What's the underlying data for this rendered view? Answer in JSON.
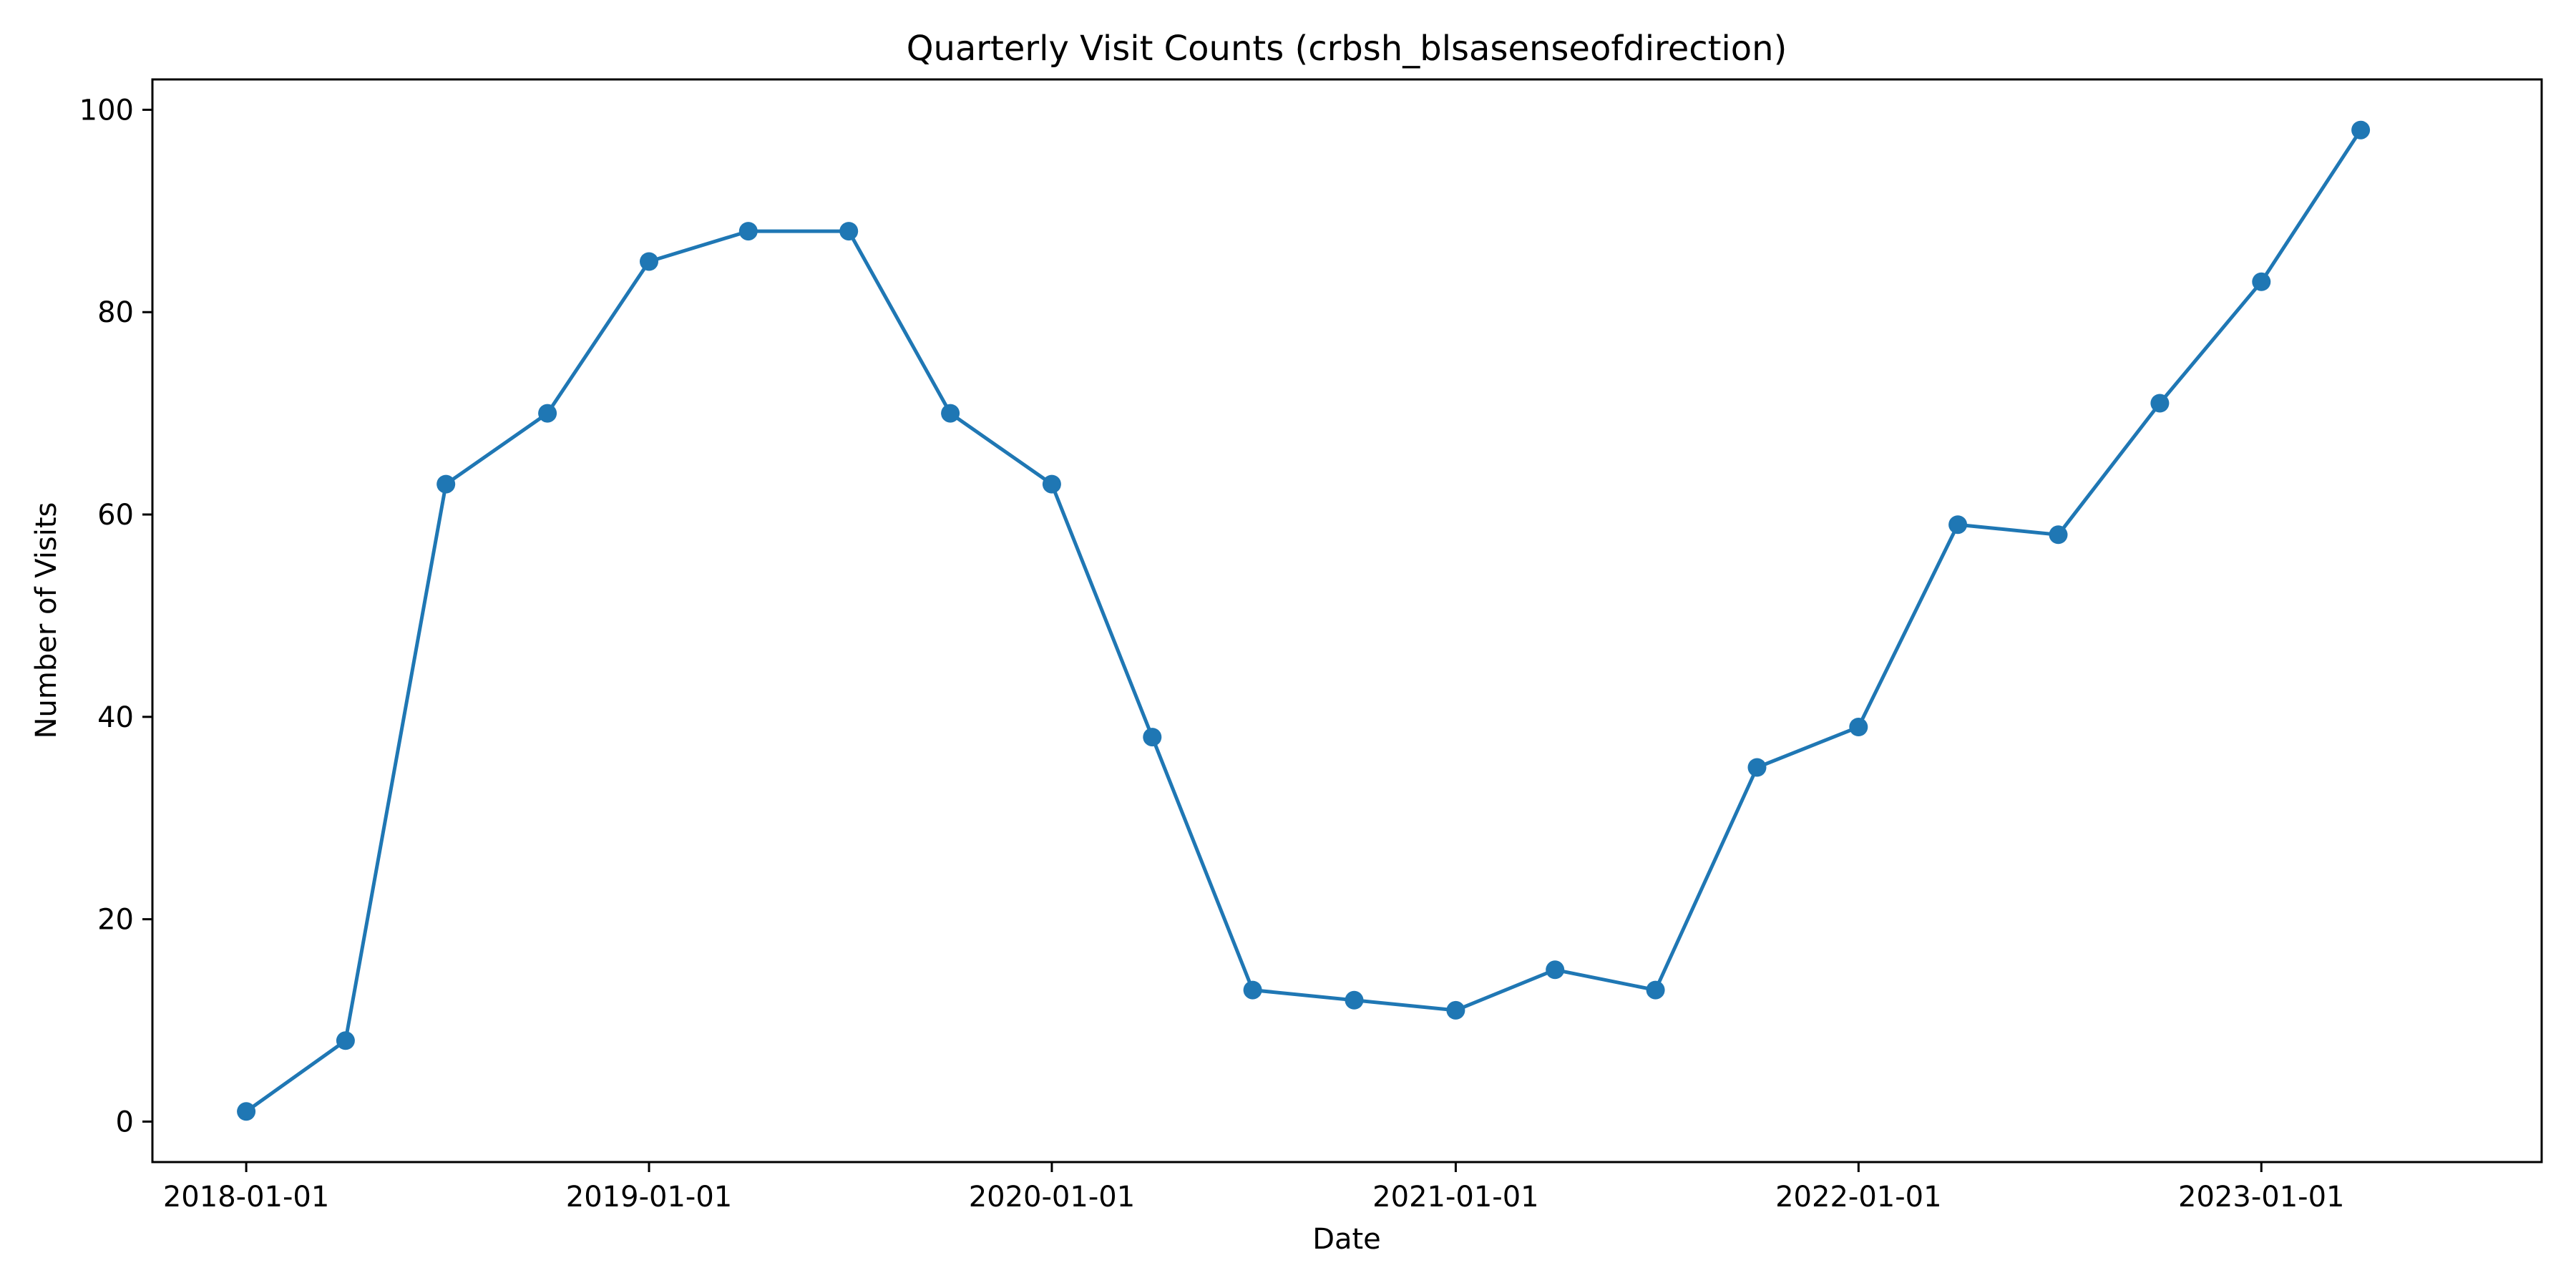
{
  "chart_data": {
    "type": "line",
    "title": "Quarterly Visit Counts (crbsh_blsasenseofdirection)",
    "xlabel": "Date",
    "ylabel": "Number of Visits",
    "x": [
      "2018-01-01",
      "2018-04-01",
      "2018-07-01",
      "2018-10-01",
      "2019-01-01",
      "2019-04-01",
      "2019-07-01",
      "2019-10-01",
      "2020-01-01",
      "2020-04-01",
      "2020-07-01",
      "2020-10-01",
      "2021-01-01",
      "2021-04-01",
      "2021-07-01",
      "2021-10-01",
      "2022-01-01",
      "2022-04-01",
      "2022-07-01",
      "2022-10-01",
      "2023-01-01",
      "2023-04-01"
    ],
    "series": [
      {
        "values": [
          1,
          8,
          63,
          70,
          85,
          88,
          88,
          70,
          63,
          38,
          13,
          12,
          11,
          15,
          13,
          35,
          39,
          59,
          58,
          71,
          83,
          98
        ],
        "color": "#1f77b4",
        "marker": "circle"
      }
    ],
    "xticks": [
      "2018-01-01",
      "2019-01-01",
      "2020-01-01",
      "2021-01-01",
      "2022-01-01",
      "2023-01-01"
    ],
    "yticks": [
      0,
      20,
      40,
      60,
      80,
      100
    ],
    "xlim": [
      "2017-10-08",
      "2023-09-12"
    ],
    "ylim": [
      -4,
      103
    ],
    "grid": false,
    "legend": "none"
  }
}
